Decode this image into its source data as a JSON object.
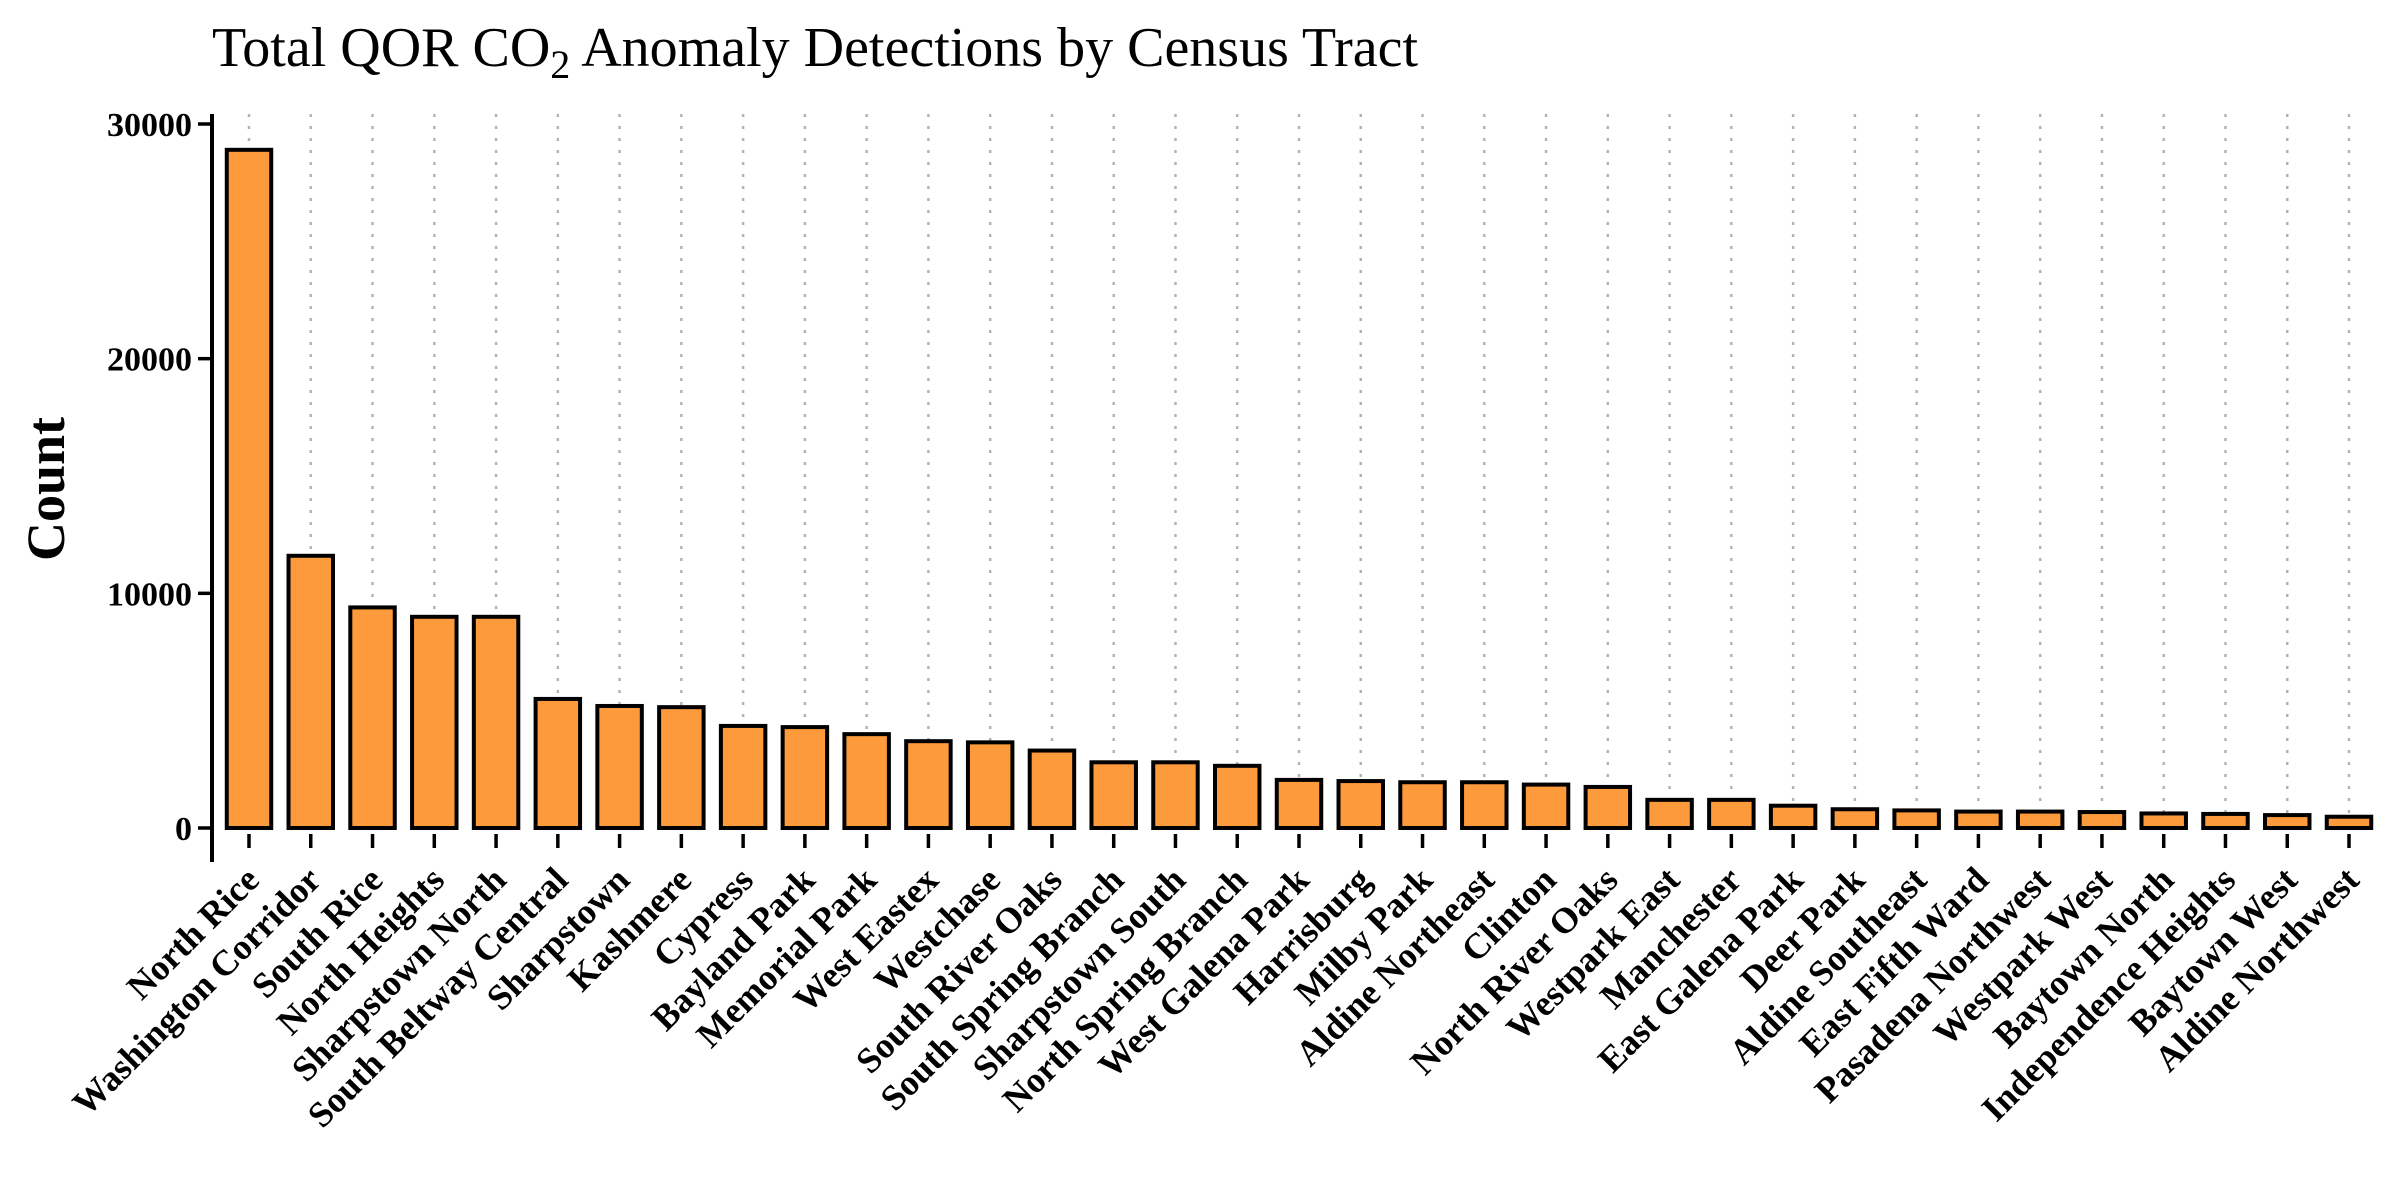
{
  "chart_data": {
    "type": "bar",
    "title": {
      "prefix": "Total QOR CO",
      "subscript": "2",
      "suffix": " Anomaly Detections by Census Tract"
    },
    "xlabel": "",
    "ylabel": "Count",
    "ylim": [
      0,
      30000
    ],
    "yticks": [
      0,
      10000,
      20000,
      30000
    ],
    "ytick_labels": [
      "0",
      "10000",
      "20000",
      "30000"
    ],
    "grid": "vertical-dotted",
    "bar_color": "#FC9A3C",
    "bar_edge_color": "#000000",
    "categories": [
      "North Rice",
      "Washington Corridor",
      "South Rice",
      "North Heights",
      "Sharpstown North",
      "South Beltway Central",
      "Sharpstown",
      "Kashmere",
      "Cypress",
      "Bayland Park",
      "Memorial Park",
      "West Eastex",
      "Westchase",
      "South River Oaks",
      "South Spring Branch",
      "Sharpstown South",
      "North Spring Branch",
      "West Galena Park",
      "Harrisburg",
      "Milby Park",
      "Aldine Northeast",
      "Clinton",
      "North River Oaks",
      "Westpark East",
      "Manchester",
      "East Galena Park",
      "Deer Park",
      "Aldine Southeast",
      "East Fifth Ward",
      "Pasadena Northwest",
      "Westpark West",
      "Baytown North",
      "Independence Heights",
      "Baytown West",
      "Aldine Northwest"
    ],
    "values": [
      28900,
      11600,
      9400,
      9000,
      9000,
      5500,
      5200,
      5150,
      4350,
      4300,
      4000,
      3700,
      3650,
      3300,
      2800,
      2800,
      2650,
      2050,
      2000,
      1950,
      1950,
      1850,
      1750,
      1200,
      1200,
      950,
      800,
      750,
      700,
      700,
      680,
      620,
      600,
      550,
      480
    ]
  }
}
